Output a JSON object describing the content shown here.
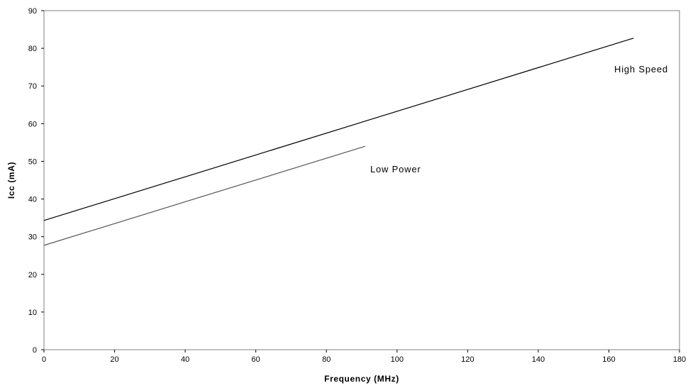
{
  "chart_data": {
    "type": "line",
    "xlabel": "Frequency (MHz)",
    "ylabel": "Icc (mA)",
    "xlim": [
      0,
      180
    ],
    "ylim": [
      0,
      90
    ],
    "x_ticks": [
      0,
      20,
      40,
      60,
      80,
      100,
      120,
      140,
      160,
      180
    ],
    "y_ticks": [
      0,
      10,
      20,
      30,
      40,
      50,
      60,
      70,
      80,
      90
    ],
    "grid": false,
    "series": [
      {
        "name": "High Speed",
        "color": "#000000",
        "x": [
          0,
          167
        ],
        "y": [
          34.3,
          82.7
        ]
      },
      {
        "name": "Low Power",
        "color": "#555555",
        "x": [
          0,
          91
        ],
        "y": [
          27.7,
          54.0
        ]
      }
    ]
  }
}
